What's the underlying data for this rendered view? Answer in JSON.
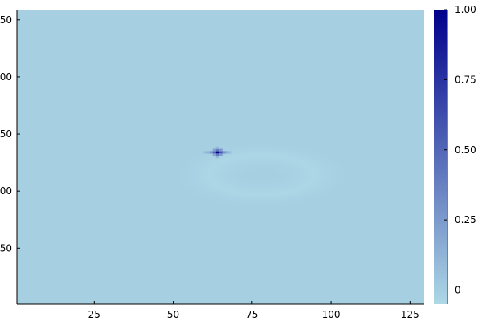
{
  "chart_data": {
    "type": "heatmap",
    "title": "",
    "xlabel": "",
    "ylabel": "",
    "x_range": [
      0.5,
      129.5
    ],
    "y_range": [
      0.5,
      129.5
    ],
    "x_ticks": [
      25,
      50,
      75,
      100,
      125
    ],
    "y_tick_labels_visible": [
      "50",
      "00",
      "50",
      "00",
      "50"
    ],
    "grid": false,
    "colorbar": {
      "range": [
        -0.05,
        1.0
      ],
      "ticks": [
        0,
        0.25,
        0.5,
        0.75,
        1.0
      ],
      "tick_labels": [
        "0",
        "0.25",
        "0.50",
        "0.75",
        "1.00"
      ],
      "colormap": [
        "#add8e6",
        "#00008b"
      ]
    },
    "field": {
      "background": 0.0,
      "peak": {
        "x": 64,
        "y": 67,
        "value": 1.0
      },
      "weak_ring_value": -0.02
    },
    "colors": {
      "background_cell": "#a6cfe2",
      "peak_cell": "#00008b"
    }
  }
}
